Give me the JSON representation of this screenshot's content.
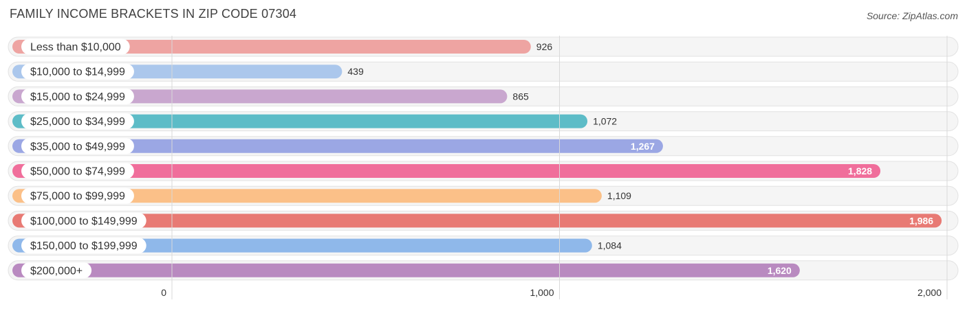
{
  "header": {
    "title": "FAMILY INCOME BRACKETS IN ZIP CODE 07304",
    "source": "Source: ZipAtlas.com"
  },
  "chart_data": {
    "type": "bar",
    "orientation": "horizontal",
    "title": "FAMILY INCOME BRACKETS IN ZIP CODE 07304",
    "xlabel": "",
    "ylabel": "",
    "xlim": [
      0,
      2000
    ],
    "grid": true,
    "categories": [
      "Less than $10,000",
      "$10,000 to $14,999",
      "$15,000 to $24,999",
      "$25,000 to $34,999",
      "$35,000 to $49,999",
      "$50,000 to $74,999",
      "$75,000 to $99,999",
      "$100,000 to $149,999",
      "$150,000 to $199,999",
      "$200,000+"
    ],
    "values": [
      926,
      439,
      865,
      1072,
      1267,
      1828,
      1109,
      1986,
      1084,
      1620
    ],
    "value_labels": [
      "926",
      "439",
      "865",
      "1,072",
      "1,267",
      "1,828",
      "1,109",
      "1,986",
      "1,084",
      "1,620"
    ],
    "colors": [
      "#eea4a2",
      "#abc7ec",
      "#c9a7cf",
      "#5dbcc7",
      "#9ba7e4",
      "#f06e9b",
      "#fbc088",
      "#e87a74",
      "#8fb8ea",
      "#b98ac0"
    ],
    "ticks": [
      {
        "value": 0,
        "label": "0"
      },
      {
        "value": 1000,
        "label": "1,000"
      },
      {
        "value": 2000,
        "label": "2,000"
      }
    ]
  }
}
